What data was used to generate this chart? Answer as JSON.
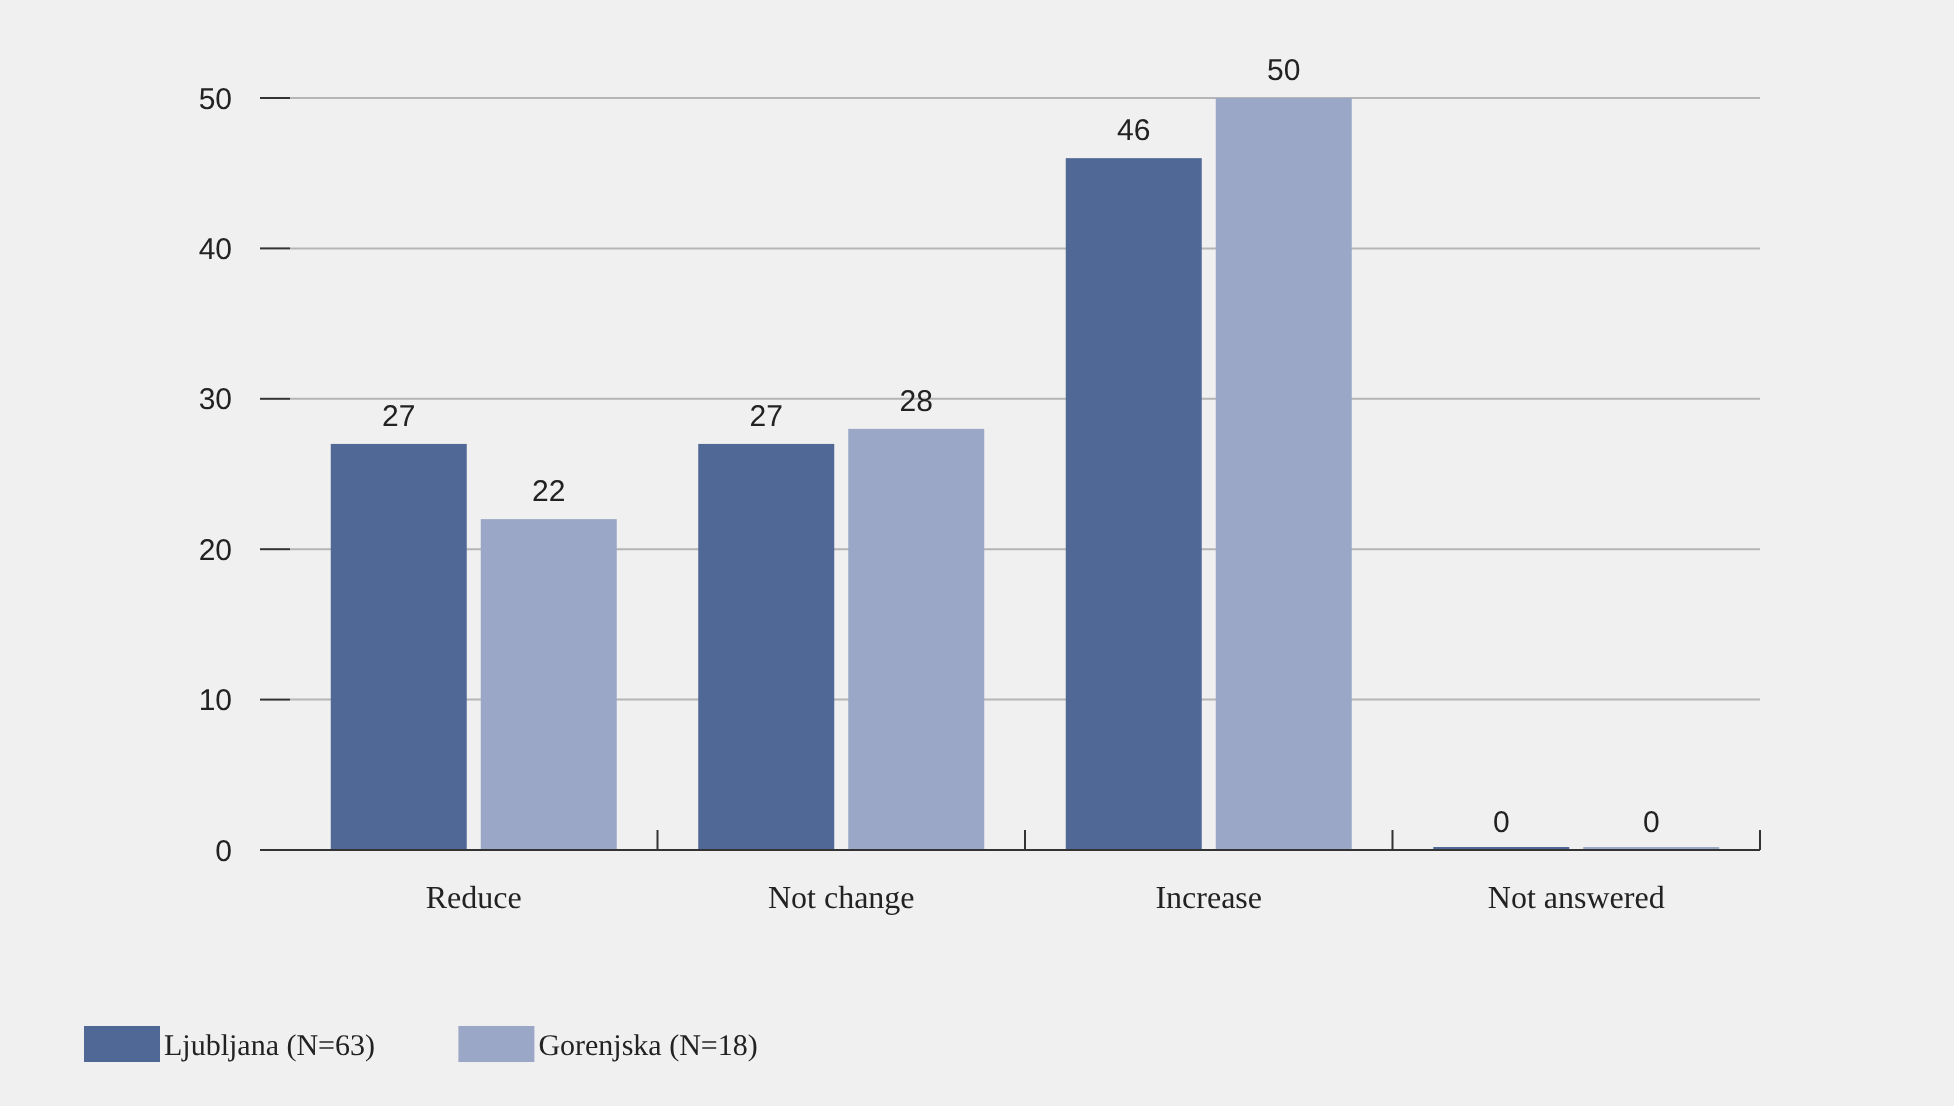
{
  "chart_data": {
    "type": "bar",
    "categories": [
      "Reduce",
      "Not change",
      "Increase",
      "Not answered"
    ],
    "series": [
      {
        "name": "Ljubljana (N=63)",
        "color": "#4f6896",
        "values": [
          27,
          27,
          46,
          0
        ]
      },
      {
        "name": "Gorenjska (N=18)",
        "color": "#9aa7c7",
        "values": [
          22,
          28,
          50,
          0
        ]
      }
    ],
    "ylim": [
      0,
      50
    ],
    "yticks": [
      0,
      10,
      20,
      30,
      40,
      50
    ],
    "grid": "y",
    "data_labels": true,
    "legend": "bottom left"
  }
}
